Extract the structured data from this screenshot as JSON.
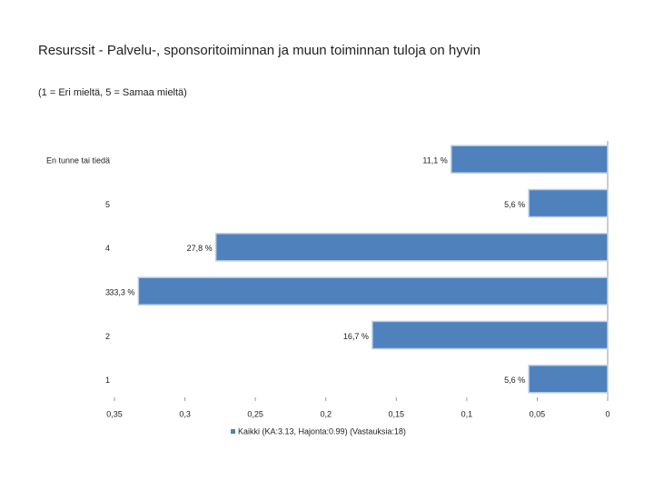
{
  "chart_data": {
    "type": "barh",
    "title": "Resurssit - Palvelu-, sponsoritoiminnan ja muun toiminnan tuloja on hyvin",
    "subtitle": "(1 = Eri mieltä, 5 = Samaa mieltä)",
    "categories": [
      "En tunne tai tiedä",
      "5",
      "4",
      "3",
      "2",
      "1"
    ],
    "series": [
      {
        "name": "Kaikki (KA:3.13, Hajonta:0.99) (Vastauksia:18)",
        "color": "#4f81bd",
        "values": [
          0.111,
          0.056,
          0.278,
          0.333,
          0.167,
          0.056
        ],
        "value_labels": [
          "11,1 %",
          "5,6 %",
          "27,8 %",
          "33,3 %",
          "16,7 %",
          "5,6 %"
        ]
      }
    ],
    "xlim": [
      0.35,
      0
    ],
    "xticks": [
      {
        "value": 0.35,
        "label": "0,35"
      },
      {
        "value": 0.3,
        "label": "0,3"
      },
      {
        "value": 0.25,
        "label": "0,25"
      },
      {
        "value": 0.2,
        "label": "0,2"
      },
      {
        "value": 0.15,
        "label": "0,15"
      },
      {
        "value": 0.1,
        "label": "0,1"
      },
      {
        "value": 0.05,
        "label": "0,05"
      },
      0
    ],
    "legend": "bottom"
  }
}
